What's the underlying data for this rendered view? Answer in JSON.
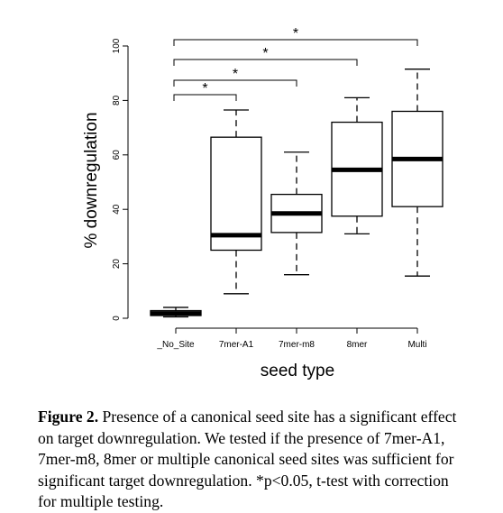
{
  "chart_data": {
    "type": "box",
    "xlabel": "seed type",
    "ylabel": "% downregulation",
    "ylim": [
      0,
      100
    ],
    "yticks": [
      0,
      20,
      40,
      60,
      80,
      100
    ],
    "categories": [
      "_No_Site",
      "7mer-A1",
      "7mer-m8",
      "8mer",
      "Multi"
    ],
    "boxes": [
      {
        "category": "_No_Site",
        "whisker_low": 0.5,
        "q1": 1,
        "median": 1.8,
        "q3": 2.8,
        "whisker_high": 4
      },
      {
        "category": "7mer-A1",
        "whisker_low": 9,
        "q1": 25,
        "median": 30.5,
        "q3": 66.5,
        "whisker_high": 76.5
      },
      {
        "category": "7mer-m8",
        "whisker_low": 16,
        "q1": 31.5,
        "median": 38.5,
        "q3": 45.5,
        "whisker_high": 61
      },
      {
        "category": "8mer",
        "whisker_low": 31,
        "q1": 37.5,
        "median": 54.5,
        "q3": 72,
        "whisker_high": 81
      },
      {
        "category": "Multi",
        "whisker_low": 15.5,
        "q1": 41,
        "median": 58.5,
        "q3": 76,
        "whisker_high": 91.5
      }
    ],
    "significance": [
      {
        "from": "_No_Site",
        "to": "7mer-A1",
        "label": "*"
      },
      {
        "from": "_No_Site",
        "to": "7mer-m8",
        "label": "*"
      },
      {
        "from": "_No_Site",
        "to": "8mer",
        "label": "*"
      },
      {
        "from": "_No_Site",
        "to": "Multi",
        "label": "*"
      }
    ]
  },
  "caption": {
    "label": "Figure 2.",
    "lines": [
      " Presence of a canonical seed site has a significant effect",
      "on target downregulation. We tested if the presence of 7mer-A1,",
      "7mer-m8, 8mer or multiple canonical seed sites was sufficient for",
      "significant target downregulation. *p<0.05, t-test with correction",
      "for multiple testing."
    ]
  }
}
